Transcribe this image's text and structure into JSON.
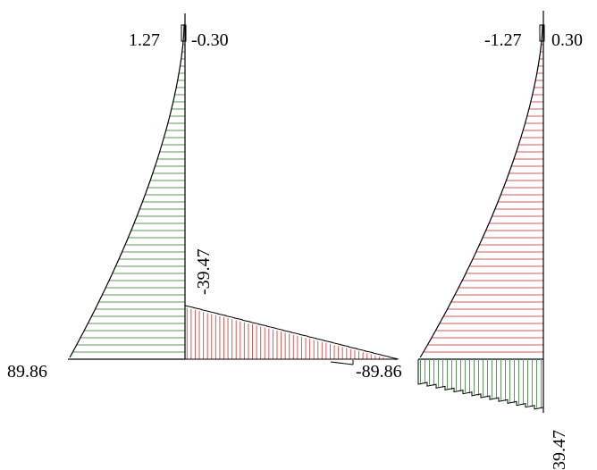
{
  "labels": {
    "left_top_left": "1.27",
    "left_top_right": "-0.30",
    "left_mid_vertical": "-39.47",
    "left_bottom": "89.86",
    "center_bottom": "-89.86",
    "right_top_left": "-1.27",
    "right_top_right": "0.30",
    "right_bottom_vertical": "39.47"
  },
  "colors": {
    "outline": "#000000",
    "green_fill": "#5a9a5a",
    "red_fill": "#d65a5a",
    "background": "#ffffff"
  }
}
